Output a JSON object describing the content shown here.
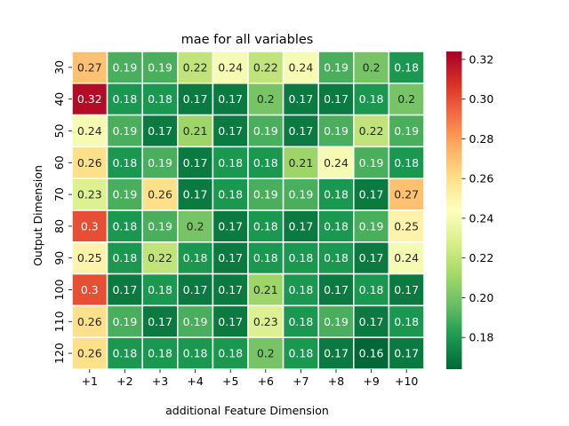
{
  "chart_data": {
    "type": "heatmap",
    "title": "mae for all variables",
    "xlabel": "additional Feature Dimension",
    "ylabel": "Output Dimension",
    "x_categories": [
      "+1",
      "+2",
      "+3",
      "+4",
      "+5",
      "+6",
      "+7",
      "+8",
      "+9",
      "+10"
    ],
    "y_categories": [
      "30",
      "40",
      "50",
      "60",
      "70",
      "80",
      "90",
      "100",
      "110",
      "120"
    ],
    "values": [
      [
        0.27,
        0.19,
        0.19,
        0.22,
        0.24,
        0.22,
        0.24,
        0.19,
        0.2,
        0.18
      ],
      [
        0.32,
        0.18,
        0.18,
        0.17,
        0.17,
        0.2,
        0.17,
        0.17,
        0.18,
        0.2
      ],
      [
        0.24,
        0.19,
        0.17,
        0.21,
        0.17,
        0.19,
        0.17,
        0.19,
        0.22,
        0.19
      ],
      [
        0.26,
        0.18,
        0.19,
        0.17,
        0.18,
        0.18,
        0.21,
        0.24,
        0.19,
        0.18
      ],
      [
        0.23,
        0.19,
        0.26,
        0.17,
        0.18,
        0.19,
        0.19,
        0.18,
        0.17,
        0.27
      ],
      [
        0.3,
        0.18,
        0.19,
        0.2,
        0.17,
        0.18,
        0.17,
        0.18,
        0.19,
        0.25
      ],
      [
        0.25,
        0.18,
        0.22,
        0.18,
        0.17,
        0.18,
        0.18,
        0.18,
        0.17,
        0.24
      ],
      [
        0.3,
        0.17,
        0.18,
        0.17,
        0.17,
        0.21,
        0.18,
        0.17,
        0.18,
        0.17
      ],
      [
        0.26,
        0.19,
        0.17,
        0.19,
        0.17,
        0.23,
        0.18,
        0.19,
        0.17,
        0.18
      ],
      [
        0.26,
        0.18,
        0.18,
        0.18,
        0.18,
        0.2,
        0.18,
        0.17,
        0.16,
        0.17
      ]
    ],
    "colormap": "RdYlGn_r",
    "vmin": 0.164,
    "vmax": 0.324,
    "colorbar_ticks": [
      "0.18",
      "0.20",
      "0.22",
      "0.24",
      "0.26",
      "0.28",
      "0.30",
      "0.32"
    ],
    "cell_border_color": "#ffffff",
    "legend": "colorbar right"
  }
}
